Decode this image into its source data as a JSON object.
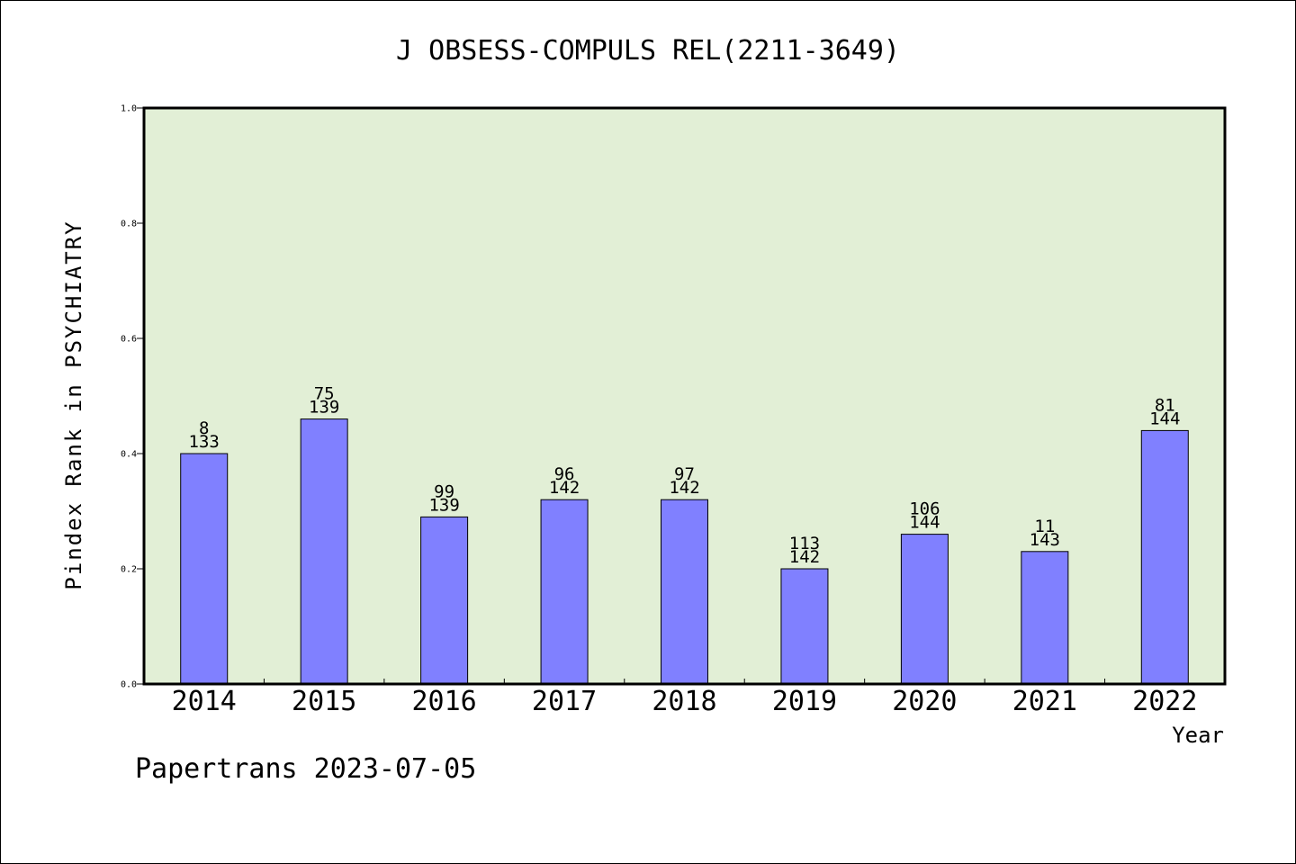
{
  "chart_data": {
    "type": "bar",
    "title": "J OBSESS-COMPULS REL(2211-3649)",
    "ylabel": "Pindex Rank in PSYCHIATRY",
    "xlabel": "Year",
    "categories": [
      "2014",
      "2015",
      "2016",
      "2017",
      "2018",
      "2019",
      "2020",
      "2021",
      "2022"
    ],
    "values": [
      0.4,
      0.46,
      0.29,
      0.32,
      0.32,
      0.2,
      0.26,
      0.23,
      0.44
    ],
    "rank_labels": [
      "8",
      "75",
      "99",
      "96",
      "97",
      "113",
      "106",
      "11",
      "81"
    ],
    "total_labels": [
      "133",
      "139",
      "139",
      "142",
      "142",
      "142",
      "144",
      "143",
      "144"
    ],
    "ylim": [
      0,
      1.0
    ],
    "yticks": [
      "0.0",
      "0.2",
      "0.4",
      "0.6",
      "0.8",
      "1.0"
    ],
    "grid": false,
    "colors": {
      "plot_background": "#e2efd6",
      "bar_fill": "#8080ff",
      "bar_stroke": "#000000"
    }
  },
  "footer": "Papertrans 2023-07-05"
}
